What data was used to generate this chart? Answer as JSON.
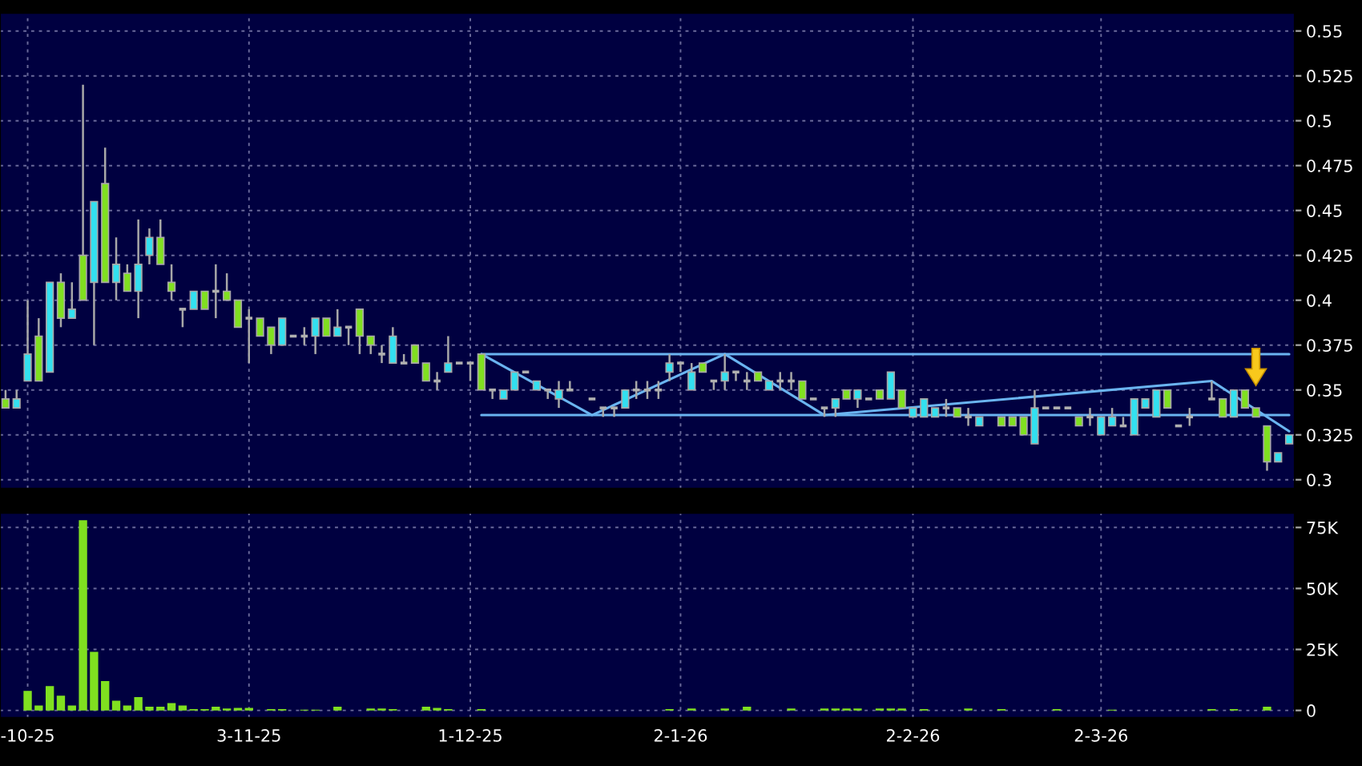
{
  "chart_data": [
    {
      "type": "candlestick",
      "grid": true,
      "legend": false,
      "tick_labels": "y",
      "ylim": [
        0.295,
        0.56
      ],
      "yticks": [
        0.3,
        0.325,
        0.35,
        0.375,
        0.4,
        0.425,
        0.45,
        0.475,
        0.5,
        0.525,
        0.55
      ],
      "categories": [
        null,
        null,
        null,
        null,
        null,
        null,
        null,
        null,
        null,
        null,
        null,
        null,
        null,
        null,
        null,
        null,
        null,
        null,
        null,
        null,
        null,
        null,
        null,
        null,
        null,
        null,
        null,
        null,
        null,
        null,
        null,
        null,
        null,
        null,
        null,
        null,
        null,
        null,
        null,
        null,
        null,
        null,
        null,
        null,
        null,
        null,
        null,
        null,
        null,
        null,
        null,
        null,
        null,
        null,
        null,
        null,
        null,
        null,
        null,
        null,
        null,
        null,
        null,
        null,
        null,
        null,
        null,
        null,
        null,
        null,
        null,
        null,
        null,
        null,
        null,
        null,
        null,
        null,
        null,
        null,
        null,
        null,
        null,
        null,
        null,
        null,
        null,
        null,
        null,
        null,
        null,
        null,
        null,
        null,
        null,
        null,
        null,
        null,
        null,
        null,
        null,
        null,
        null,
        null,
        null,
        null,
        null,
        null,
        null,
        null,
        null,
        null,
        null,
        null,
        null,
        null,
        null
      ],
      "ohlc": [
        [
          0.345,
          0.35,
          0.34,
          0.34
        ],
        [
          0.34,
          0.35,
          0.34,
          0.345
        ],
        [
          0.355,
          0.4,
          0.355,
          0.37
        ],
        [
          0.38,
          0.39,
          0.355,
          0.355
        ],
        [
          0.36,
          0.41,
          0.36,
          0.41
        ],
        [
          0.41,
          0.415,
          0.385,
          0.39
        ],
        [
          0.39,
          0.41,
          0.39,
          0.395
        ],
        [
          0.425,
          0.52,
          0.4,
          0.4
        ],
        [
          0.41,
          0.455,
          0.375,
          0.455
        ],
        [
          0.465,
          0.485,
          0.41,
          0.41
        ],
        [
          0.41,
          0.435,
          0.4,
          0.42
        ],
        [
          0.415,
          0.42,
          0.405,
          0.405
        ],
        [
          0.405,
          0.445,
          0.39,
          0.42
        ],
        [
          0.425,
          0.44,
          0.42,
          0.435
        ],
        [
          0.435,
          0.445,
          0.42,
          0.42
        ],
        [
          0.41,
          0.42,
          0.4,
          0.405
        ],
        [
          0.395,
          0.395,
          0.385,
          0.395
        ],
        [
          0.395,
          0.405,
          0.395,
          0.405
        ],
        [
          0.405,
          0.405,
          0.395,
          0.395
        ],
        [
          0.405,
          0.42,
          0.39,
          0.405
        ],
        [
          0.405,
          0.415,
          0.4,
          0.4
        ],
        [
          0.4,
          0.4,
          0.385,
          0.385
        ],
        [
          0.39,
          0.395,
          0.365,
          0.39
        ],
        [
          0.39,
          0.39,
          0.38,
          0.38
        ],
        [
          0.385,
          0.385,
          0.37,
          0.375
        ],
        [
          0.375,
          0.39,
          0.375,
          0.39
        ],
        [
          0.38,
          0.38,
          0.38,
          0.38
        ],
        [
          0.38,
          0.385,
          0.375,
          0.38
        ],
        [
          0.38,
          0.39,
          0.37,
          0.39
        ],
        [
          0.39,
          0.39,
          0.38,
          0.38
        ],
        [
          0.38,
          0.395,
          0.38,
          0.385
        ],
        [
          0.385,
          0.385,
          0.375,
          0.385
        ],
        [
          0.395,
          0.395,
          0.37,
          0.38
        ],
        [
          0.38,
          0.38,
          0.37,
          0.375
        ],
        [
          0.37,
          0.375,
          0.365,
          0.37
        ],
        [
          0.365,
          0.385,
          0.365,
          0.38
        ],
        [
          0.365,
          0.37,
          0.365,
          0.365
        ],
        [
          0.375,
          0.375,
          0.365,
          0.365
        ],
        [
          0.365,
          0.365,
          0.355,
          0.355
        ],
        [
          0.355,
          0.36,
          0.35,
          0.355
        ],
        [
          0.36,
          0.38,
          0.36,
          0.365
        ],
        [
          0.365,
          0.365,
          0.365,
          0.365
        ],
        [
          0.365,
          0.365,
          0.355,
          0.365
        ],
        [
          0.37,
          0.37,
          0.35,
          0.35
        ],
        [
          0.35,
          0.35,
          0.345,
          0.35
        ],
        [
          0.345,
          0.35,
          0.345,
          0.35
        ],
        [
          0.35,
          0.36,
          0.35,
          0.36
        ],
        [
          0.36,
          0.36,
          0.36,
          0.36
        ],
        [
          0.35,
          0.355,
          0.35,
          0.355
        ],
        [
          0.35,
          0.35,
          0.345,
          0.35
        ],
        [
          0.345,
          0.355,
          0.34,
          0.35
        ],
        [
          0.35,
          0.355,
          0.35,
          0.35
        ],
        null,
        [
          0.345,
          0.345,
          0.345,
          0.345
        ],
        [
          0.34,
          0.34,
          0.335,
          0.34
        ],
        [
          0.34,
          0.34,
          0.335,
          0.34
        ],
        [
          0.34,
          0.35,
          0.34,
          0.35
        ],
        [
          0.35,
          0.355,
          0.345,
          0.35
        ],
        [
          0.35,
          0.355,
          0.345,
          0.35
        ],
        [
          0.35,
          0.355,
          0.345,
          0.35
        ],
        [
          0.36,
          0.37,
          0.355,
          0.365
        ],
        [
          0.365,
          0.365,
          0.36,
          0.365
        ],
        [
          0.35,
          0.365,
          0.35,
          0.36
        ],
        [
          0.365,
          0.365,
          0.36,
          0.36
        ],
        [
          0.355,
          0.355,
          0.35,
          0.355
        ],
        [
          0.355,
          0.37,
          0.35,
          0.36
        ],
        [
          0.36,
          0.36,
          0.355,
          0.36
        ],
        [
          0.355,
          0.36,
          0.35,
          0.355
        ],
        [
          0.36,
          0.36,
          0.355,
          0.355
        ],
        [
          0.35,
          0.355,
          0.35,
          0.355
        ],
        [
          0.355,
          0.36,
          0.35,
          0.355
        ],
        [
          0.355,
          0.36,
          0.35,
          0.355
        ],
        [
          0.355,
          0.355,
          0.345,
          0.345
        ],
        [
          0.345,
          0.345,
          0.345,
          0.345
        ],
        [
          0.34,
          0.34,
          0.335,
          0.34
        ],
        [
          0.34,
          0.345,
          0.335,
          0.345
        ],
        [
          0.35,
          0.35,
          0.345,
          0.345
        ],
        [
          0.345,
          0.35,
          0.34,
          0.35
        ],
        [
          0.345,
          0.345,
          0.345,
          0.345
        ],
        [
          0.35,
          0.35,
          0.345,
          0.345
        ],
        [
          0.345,
          0.36,
          0.345,
          0.36
        ],
        [
          0.35,
          0.35,
          0.34,
          0.34
        ],
        [
          0.335,
          0.34,
          0.335,
          0.34
        ],
        [
          0.335,
          0.345,
          0.335,
          0.345
        ],
        [
          0.335,
          0.34,
          0.335,
          0.34
        ],
        [
          0.34,
          0.345,
          0.335,
          0.34
        ],
        [
          0.34,
          0.34,
          0.335,
          0.335
        ],
        [
          0.335,
          0.34,
          0.33,
          0.335
        ],
        [
          0.33,
          0.335,
          0.33,
          0.335
        ],
        null,
        [
          0.335,
          0.335,
          0.33,
          0.33
        ],
        [
          0.335,
          0.335,
          0.33,
          0.33
        ],
        [
          0.335,
          0.335,
          0.325,
          0.325
        ],
        [
          0.32,
          0.35,
          0.32,
          0.34
        ],
        [
          0.34,
          0.34,
          0.34,
          0.34
        ],
        [
          0.34,
          0.34,
          0.34,
          0.34
        ],
        [
          0.34,
          0.34,
          0.34,
          0.34
        ],
        [
          0.335,
          0.335,
          0.33,
          0.33
        ],
        [
          0.335,
          0.34,
          0.33,
          0.335
        ],
        [
          0.325,
          0.335,
          0.325,
          0.335
        ],
        [
          0.33,
          0.34,
          0.33,
          0.335
        ],
        [
          0.33,
          0.335,
          0.33,
          0.33
        ],
        [
          0.325,
          0.345,
          0.325,
          0.345
        ],
        [
          0.34,
          0.345,
          0.34,
          0.345
        ],
        [
          0.335,
          0.35,
          0.335,
          0.35
        ],
        [
          0.35,
          0.35,
          0.34,
          0.34
        ],
        [
          0.33,
          0.33,
          0.33,
          0.33
        ],
        [
          0.335,
          0.34,
          0.33,
          0.335
        ],
        null,
        [
          0.345,
          0.355,
          0.345,
          0.345
        ],
        [
          0.345,
          0.345,
          0.335,
          0.335
        ],
        [
          0.335,
          0.35,
          0.335,
          0.35
        ],
        [
          0.35,
          0.35,
          0.34,
          0.34
        ],
        [
          0.34,
          0.34,
          0.335,
          0.335
        ],
        [
          0.33,
          0.33,
          0.305,
          0.31
        ],
        [
          0.31,
          0.315,
          0.31,
          0.315
        ],
        [
          0.32,
          0.325,
          0.32,
          0.325
        ]
      ],
      "colors": [
        "#80e020",
        "#33e0f0",
        "#33e0f0",
        "#80e020",
        "#33e0f0",
        "#80e020",
        "#33e0f0",
        "#80e020",
        "#33e0f0",
        "#80e020",
        "#33e0f0",
        "#80e020",
        "#33e0f0",
        "#33e0f0",
        "#80e020",
        "#80e020",
        "#b0b0b0",
        "#33e0f0",
        "#80e020",
        "#b0b0b0",
        "#80e020",
        "#80e020",
        "#b0b0b0",
        "#80e020",
        "#80e020",
        "#33e0f0",
        "#b0b0b0",
        "#b0b0b0",
        "#33e0f0",
        "#80e020",
        "#33e0f0",
        "#b0b0b0",
        "#80e020",
        "#80e020",
        "#b0b0b0",
        "#33e0f0",
        "#b0b0b0",
        "#80e020",
        "#80e020",
        "#b0b0b0",
        "#33e0f0",
        "#b0b0b0",
        "#b0b0b0",
        "#80e020",
        "#b0b0b0",
        "#33e0f0",
        "#33e0f0",
        "#b0b0b0",
        "#33e0f0",
        "#b0b0b0",
        "#33e0f0",
        "#b0b0b0",
        null,
        "#b0b0b0",
        "#b0b0b0",
        "#b0b0b0",
        "#33e0f0",
        "#b0b0b0",
        "#b0b0b0",
        "#b0b0b0",
        "#33e0f0",
        "#b0b0b0",
        "#33e0f0",
        "#80e020",
        "#b0b0b0",
        "#33e0f0",
        "#b0b0b0",
        "#b0b0b0",
        "#80e020",
        "#33e0f0",
        "#b0b0b0",
        "#b0b0b0",
        "#80e020",
        "#b0b0b0",
        "#b0b0b0",
        "#33e0f0",
        "#80e020",
        "#33e0f0",
        "#b0b0b0",
        "#80e020",
        "#33e0f0",
        "#80e020",
        "#33e0f0",
        "#33e0f0",
        "#33e0f0",
        "#b0b0b0",
        "#80e020",
        "#b0b0b0",
        "#33e0f0",
        null,
        "#80e020",
        "#80e020",
        "#80e020",
        "#33e0f0",
        "#b0b0b0",
        "#b0b0b0",
        "#b0b0b0",
        "#80e020",
        "#b0b0b0",
        "#33e0f0",
        "#33e0f0",
        "#b0b0b0",
        "#33e0f0",
        "#33e0f0",
        "#33e0f0",
        "#80e020",
        "#b0b0b0",
        "#b0b0b0",
        null,
        "#b0b0b0",
        "#80e020",
        "#33e0f0",
        "#80e020",
        "#80e020",
        "#80e020",
        "#33e0f0",
        "#33e0f0"
      ],
      "series": [
        {
          "type": "line",
          "color": "#6ab4f0",
          "values": [
            null,
            null,
            null,
            null,
            null,
            null,
            null,
            null,
            null,
            null,
            null,
            null,
            null,
            null,
            null,
            null,
            null,
            null,
            null,
            null,
            null,
            null,
            null,
            null,
            null,
            null,
            null,
            null,
            null,
            null,
            null,
            null,
            null,
            null,
            null,
            null,
            null,
            null,
            null,
            null,
            null,
            null,
            null,
            0.37,
            null,
            null,
            null,
            null,
            null,
            null,
            null,
            null,
            null,
            null,
            null,
            null,
            null,
            null,
            null,
            null,
            null,
            null,
            null,
            null,
            null,
            null,
            null,
            null,
            null,
            null,
            null,
            null,
            null,
            null,
            null,
            null,
            null,
            null,
            null,
            null,
            null,
            null,
            null,
            null,
            null,
            null,
            null,
            null,
            null,
            null,
            null,
            null,
            null,
            null,
            null,
            null,
            null,
            null,
            null,
            null,
            null,
            null,
            null,
            null,
            null,
            null,
            null,
            null,
            null,
            null,
            null,
            null,
            null,
            null,
            null,
            null,
            0.37
          ]
        },
        {
          "type": "line",
          "color": "#6ab4f0",
          "values": [
            null,
            null,
            null,
            null,
            null,
            null,
            null,
            null,
            null,
            null,
            null,
            null,
            null,
            null,
            null,
            null,
            null,
            null,
            null,
            null,
            null,
            null,
            null,
            null,
            null,
            null,
            null,
            null,
            null,
            null,
            null,
            null,
            null,
            null,
            null,
            null,
            null,
            null,
            null,
            null,
            null,
            null,
            null,
            0.336,
            null,
            null,
            null,
            null,
            null,
            null,
            null,
            null,
            null,
            null,
            null,
            null,
            null,
            null,
            null,
            null,
            null,
            null,
            null,
            null,
            null,
            null,
            null,
            null,
            null,
            null,
            null,
            null,
            null,
            null,
            null,
            null,
            null,
            null,
            null,
            null,
            null,
            null,
            null,
            null,
            null,
            null,
            null,
            null,
            null,
            null,
            null,
            null,
            null,
            null,
            null,
            null,
            null,
            null,
            null,
            null,
            null,
            null,
            null,
            null,
            null,
            null,
            null,
            null,
            null,
            null,
            null,
            null,
            null,
            null,
            null,
            null,
            0.336
          ]
        },
        {
          "type": "line",
          "color": "#6ab4f0",
          "values": [
            null,
            null,
            null,
            null,
            null,
            null,
            null,
            null,
            null,
            null,
            null,
            null,
            null,
            null,
            null,
            null,
            null,
            null,
            null,
            null,
            null,
            null,
            null,
            null,
            null,
            null,
            null,
            null,
            null,
            null,
            null,
            null,
            null,
            null,
            null,
            null,
            null,
            null,
            null,
            null,
            null,
            null,
            null,
            0.37,
            null,
            null,
            null,
            null,
            null,
            null,
            null,
            null,
            null,
            0.336,
            null,
            null,
            null,
            null,
            null,
            null,
            null,
            null,
            null,
            null,
            null,
            0.37,
            null,
            null,
            null,
            null,
            null,
            null,
            null,
            null,
            0.336,
            null,
            null,
            null,
            null,
            null,
            null,
            null,
            null,
            null,
            null,
            null,
            null,
            null,
            null,
            null,
            null,
            null,
            null,
            null,
            null,
            null,
            null,
            null,
            null,
            null,
            null,
            null,
            null,
            null,
            null,
            null,
            null,
            null,
            null,
            0.355,
            null,
            null,
            null,
            null,
            null,
            null,
            0.327
          ]
        }
      ]
    },
    {
      "type": "bar",
      "grid": true,
      "legend": false,
      "color": "#80e020",
      "ylim": [
        -3000,
        81000
      ],
      "yticks": [
        0,
        {
          "value": 25000,
          "label": "25K"
        },
        {
          "value": 50000,
          "label": "50K"
        },
        {
          "value": 75000,
          "label": "75K"
        }
      ],
      "categories": [
        null,
        null,
        "-10-25",
        null,
        null,
        null,
        null,
        null,
        null,
        null,
        null,
        null,
        null,
        null,
        null,
        null,
        null,
        null,
        null,
        null,
        null,
        null,
        "3-11-25",
        null,
        null,
        null,
        null,
        null,
        null,
        null,
        null,
        null,
        null,
        null,
        null,
        null,
        null,
        null,
        null,
        null,
        null,
        null,
        "1-12-25",
        null,
        null,
        null,
        null,
        null,
        null,
        null,
        null,
        null,
        null,
        null,
        null,
        null,
        null,
        null,
        null,
        null,
        null,
        "2-1-26",
        null,
        null,
        null,
        null,
        null,
        null,
        null,
        null,
        null,
        null,
        null,
        null,
        null,
        null,
        null,
        null,
        null,
        null,
        null,
        null,
        "2-2-26",
        null,
        null,
        null,
        null,
        null,
        null,
        null,
        null,
        null,
        null,
        null,
        null,
        null,
        null,
        null,
        null,
        "2-3-26",
        null,
        null,
        null,
        null,
        null,
        null,
        null,
        null,
        null,
        null,
        null,
        null,
        null,
        null,
        null,
        null,
        null
      ],
      "values": [
        null,
        null,
        8000,
        2000,
        10000,
        6000,
        2000,
        78000,
        24000,
        12000,
        4000,
        2000,
        5500,
        1500,
        1500,
        3000,
        2000,
        500,
        500,
        1500,
        800,
        1000,
        1000,
        null,
        500,
        500,
        null,
        300,
        300,
        null,
        1500,
        null,
        null,
        800,
        800,
        500,
        null,
        null,
        1500,
        1000,
        500,
        null,
        null,
        500,
        null,
        null,
        null,
        null,
        null,
        null,
        null,
        null,
        null,
        null,
        null,
        null,
        null,
        null,
        null,
        null,
        500,
        null,
        800,
        null,
        null,
        800,
        null,
        1500,
        null,
        null,
        null,
        800,
        null,
        null,
        800,
        800,
        800,
        800,
        null,
        800,
        800,
        800,
        null,
        500,
        null,
        null,
        null,
        800,
        null,
        null,
        500,
        null,
        null,
        null,
        null,
        500,
        null,
        null,
        null,
        null,
        300,
        null,
        null,
        null,
        null,
        null,
        null,
        null,
        null,
        500,
        null,
        500,
        null,
        null,
        1500,
        null,
        null
      ]
    }
  ]
}
